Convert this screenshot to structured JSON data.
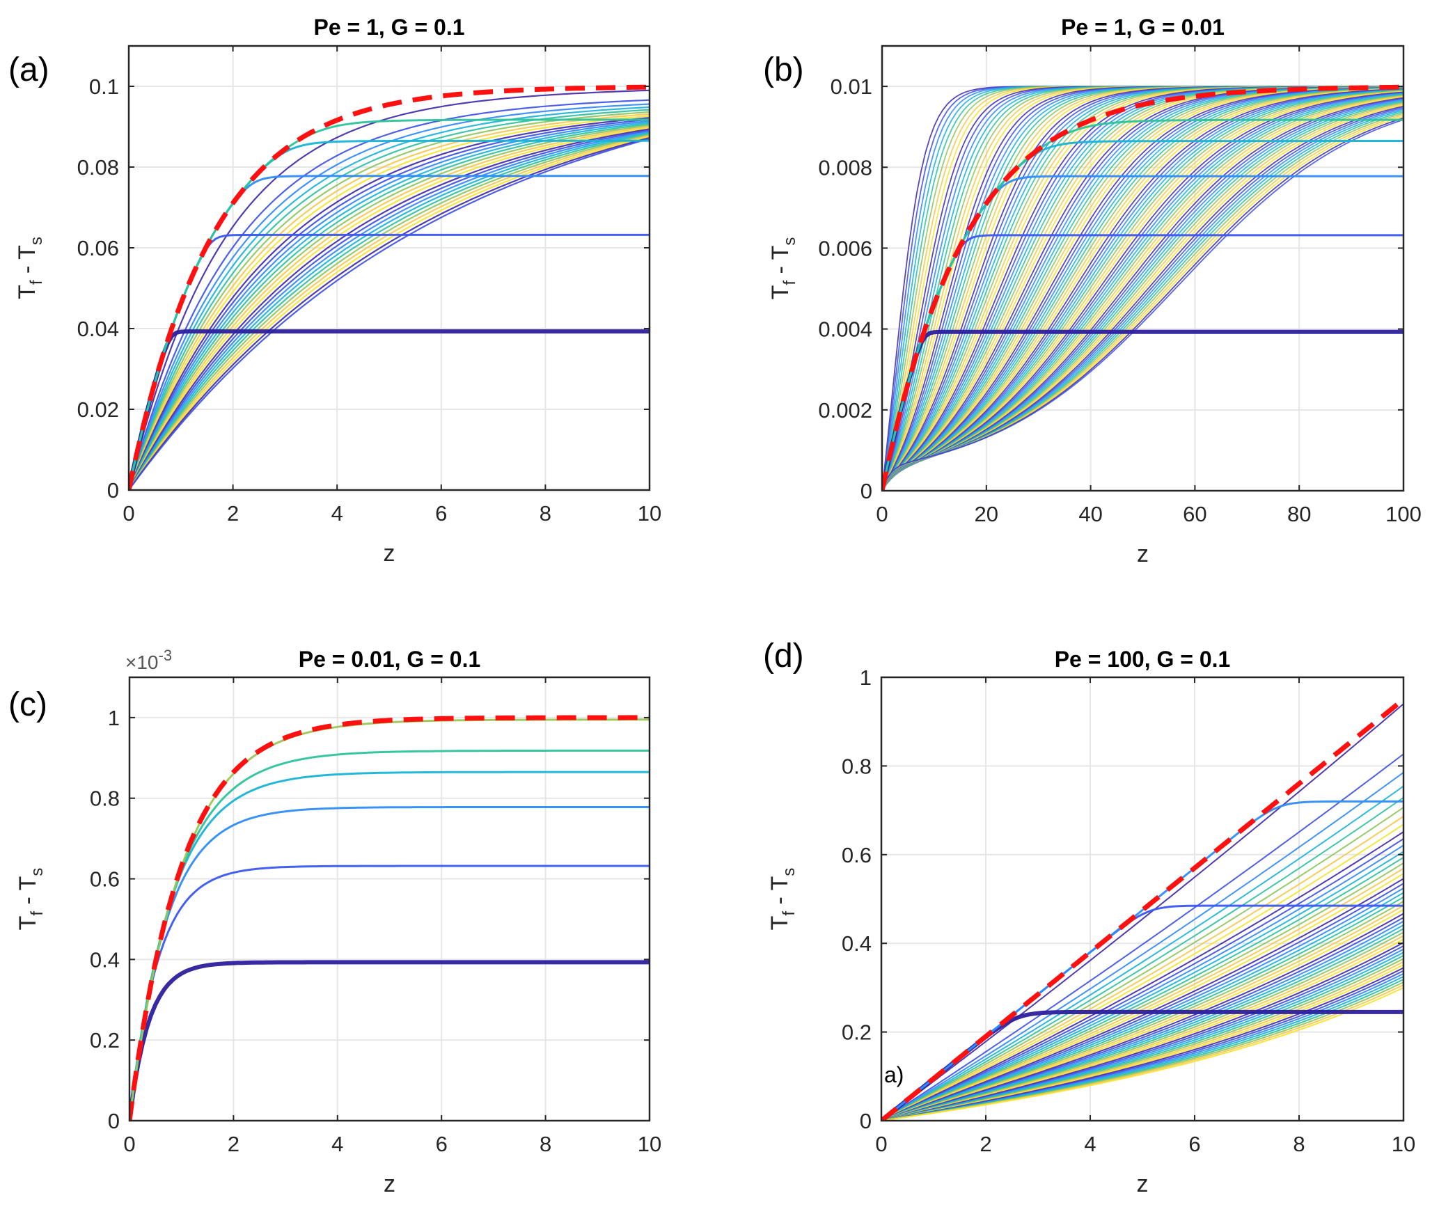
{
  "figure": {
    "description": "Four panels of T_f - T_s versus z for different Pe and G"
  },
  "palette": [
    "#3e26a8",
    "#3a4ee6",
    "#2e87f7",
    "#15b1d8",
    "#2bc09d",
    "#8ec45a",
    "#f6c64b",
    "#f5e32c"
  ],
  "envelope_color": "#ff1010",
  "chart_data": [
    {
      "id": "a",
      "type": "line",
      "panel_letter": "(a)",
      "title": "Pe = 1, G = 0.1",
      "xlabel": "z",
      "ylabel_main": "T",
      "ylabel_sub1": "f",
      "ylabel_mid": " - T",
      "ylabel_sub2": "s",
      "exponent_label": "",
      "xlim": [
        0,
        10
      ],
      "ylim": [
        0,
        0.11
      ],
      "xticks": [
        0,
        2,
        4,
        6,
        8,
        10
      ],
      "xtick_labels": [
        "0",
        "2",
        "4",
        "6",
        "8",
        "10"
      ],
      "yticks": [
        0,
        0.02,
        0.04,
        0.06,
        0.08,
        0.1
      ],
      "ytick_labels": [
        "0",
        "0.02",
        "0.04",
        "0.06",
        "0.08",
        "0.1"
      ],
      "grid": true,
      "envelope": {
        "kind": "saturating",
        "amplitude": 0.1,
        "rate": 0.62
      },
      "plateaus": [
        {
          "level": 0.0393,
          "z_break": 2.2,
          "thick": true
        },
        {
          "level": 0.0632,
          "z_break": 3.6
        },
        {
          "level": 0.0778,
          "z_break": 4.6
        },
        {
          "level": 0.0865,
          "z_break": 5.6
        },
        {
          "level": 0.0918,
          "z_break": 6.6
        }
      ],
      "family": {
        "kind": "mixed",
        "count": 26,
        "end_min": 0.087,
        "end_max": 0.099
      },
      "stray_text": ""
    },
    {
      "id": "b",
      "type": "line",
      "panel_letter": "(b)",
      "title": "Pe = 1, G = 0.01",
      "xlabel": "z",
      "ylabel_main": "T",
      "ylabel_sub1": "f",
      "ylabel_mid": " - T",
      "ylabel_sub2": "s",
      "exponent_label": "",
      "xlim": [
        0,
        100
      ],
      "ylim": [
        0,
        0.011
      ],
      "xticks": [
        0,
        20,
        40,
        60,
        80,
        100
      ],
      "xtick_labels": [
        "0",
        "20",
        "40",
        "60",
        "80",
        "100"
      ],
      "yticks": [
        0,
        0.002,
        0.004,
        0.006,
        0.008,
        0.01
      ],
      "ytick_labels": [
        "0",
        "0.002",
        "0.004",
        "0.006",
        "0.008",
        "0.01"
      ],
      "grid": true,
      "envelope": {
        "kind": "saturating",
        "amplitude": 0.01,
        "rate": 0.62
      },
      "plateaus": [
        {
          "level": 0.00393,
          "z_break": 40,
          "thick": true
        },
        {
          "level": 0.00632,
          "z_break": 60
        },
        {
          "level": 0.00778,
          "z_break": 73
        },
        {
          "level": 0.00865,
          "z_break": 85
        },
        {
          "level": 0.00918,
          "z_break": 93
        }
      ],
      "family": {
        "kind": "sigmoid",
        "count": 90,
        "end_min": 0.0099,
        "end_max": 0.01
      },
      "stray_text": ""
    },
    {
      "id": "c",
      "type": "line",
      "panel_letter": "(c)",
      "title": "Pe = 0.01, G = 0.1",
      "xlabel": "z",
      "ylabel_main": "T",
      "ylabel_sub1": "f",
      "ylabel_mid": " - T",
      "ylabel_sub2": "s",
      "exponent_label": "×10",
      "exponent_power": "-3",
      "xlim": [
        0,
        10
      ],
      "ylim": [
        0,
        1.1
      ],
      "xticks": [
        0,
        2,
        4,
        6,
        8,
        10
      ],
      "xtick_labels": [
        "0",
        "2",
        "4",
        "6",
        "8",
        "10"
      ],
      "yticks": [
        0,
        0.2,
        0.4,
        0.6,
        0.8,
        1
      ],
      "ytick_labels": [
        "0",
        "0.2",
        "0.4",
        "0.6",
        "0.8",
        "1"
      ],
      "grid": true,
      "envelope": {
        "kind": "saturating",
        "amplitude": 1.0,
        "rate": 1.0
      },
      "plateaus": [
        {
          "level": 0.393,
          "rate": 2.0,
          "thick": true
        },
        {
          "level": 0.632,
          "rate": 1.55
        },
        {
          "level": 0.778,
          "rate": 1.3
        },
        {
          "level": 0.865,
          "rate": 1.18
        },
        {
          "level": 0.918,
          "rate": 1.1
        },
        {
          "level": 0.995,
          "rate": 1.0
        }
      ],
      "family": {
        "kind": "none",
        "count": 0
      },
      "stray_text": ""
    },
    {
      "id": "d",
      "type": "line",
      "panel_letter": "(d)",
      "title": "Pe = 100, G = 0.1",
      "xlabel": "z",
      "ylabel_main": "T",
      "ylabel_sub1": "f",
      "ylabel_mid": " - T",
      "ylabel_sub2": "s",
      "exponent_label": "",
      "xlim": [
        0,
        10
      ],
      "ylim": [
        0,
        1
      ],
      "xticks": [
        0,
        2,
        4,
        6,
        8,
        10
      ],
      "xtick_labels": [
        "0",
        "2",
        "4",
        "6",
        "8",
        "10"
      ],
      "yticks": [
        0,
        0.2,
        0.4,
        0.6,
        0.8,
        1
      ],
      "ytick_labels": [
        "0",
        "0.2",
        "0.4",
        "0.6",
        "0.8",
        "1"
      ],
      "grid": true,
      "envelope": {
        "kind": "linear",
        "slope": 0.095
      },
      "plateaus": [
        {
          "level": 0.245,
          "z_break": 2.6,
          "thick": true
        },
        {
          "level": 0.485,
          "z_break": 5.1
        },
        {
          "level": 0.72,
          "z_break": 7.6
        }
      ],
      "family": {
        "kind": "fan",
        "count": 48,
        "end_min": 0.3,
        "end_max": 0.94
      },
      "stray_text": "a)"
    }
  ]
}
